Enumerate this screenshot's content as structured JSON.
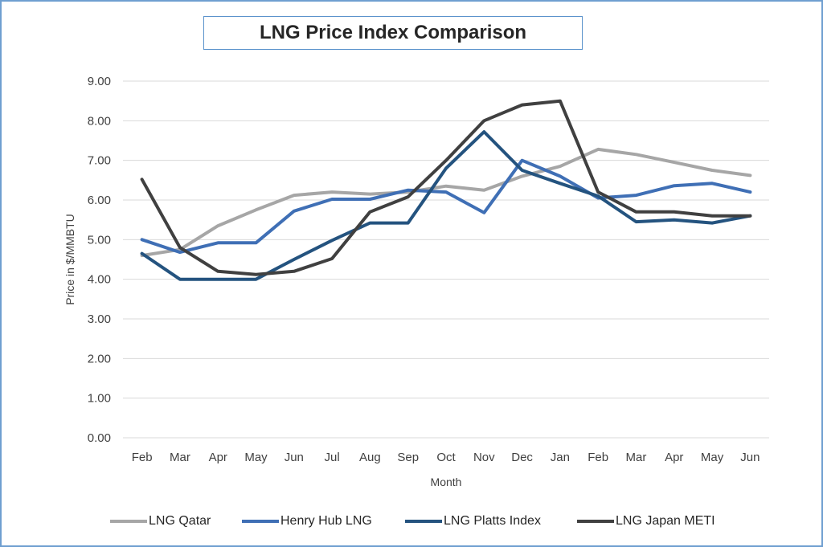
{
  "chart_data": {
    "type": "line",
    "title": "LNG Price Index Comparison",
    "xlabel": "Month",
    "ylabel": "Price in $/MMBTU",
    "ylim": [
      0,
      9
    ],
    "yticks": [
      "0.00",
      "1.00",
      "2.00",
      "3.00",
      "4.00",
      "5.00",
      "6.00",
      "7.00",
      "8.00",
      "9.00"
    ],
    "categories": [
      "Feb",
      "Mar",
      "Apr",
      "May",
      "Jun",
      "Jul",
      "Aug",
      "Sep",
      "Oct",
      "Nov",
      "Dec",
      "Jan",
      "Feb",
      "Mar",
      "Apr",
      "May",
      "Jun"
    ],
    "grid": true,
    "legend_position": "bottom",
    "series": [
      {
        "name": "LNG Qatar",
        "color": "#a6a6a6",
        "values": [
          4.6,
          4.75,
          5.35,
          5.75,
          6.12,
          6.2,
          6.15,
          6.2,
          6.35,
          6.25,
          6.6,
          6.85,
          7.28,
          7.15,
          6.95,
          6.75,
          6.62
        ]
      },
      {
        "name": "Henry Hub LNG",
        "color": "#3f6fb5",
        "values": [
          5.0,
          4.68,
          4.92,
          4.92,
          5.72,
          6.02,
          6.02,
          6.25,
          6.2,
          5.68,
          7.0,
          6.6,
          6.05,
          6.12,
          6.36,
          6.42,
          6.2
        ]
      },
      {
        "name": "LNG Platts Index",
        "color": "#24537f",
        "values": [
          4.65,
          4.0,
          4.0,
          4.0,
          4.5,
          4.98,
          5.42,
          5.42,
          6.8,
          7.72,
          6.75,
          6.42,
          6.1,
          5.45,
          5.5,
          5.42,
          5.6
        ]
      },
      {
        "name": "LNG Japan METI",
        "color": "#404040",
        "values": [
          6.52,
          4.8,
          4.2,
          4.12,
          4.2,
          4.52,
          5.7,
          6.08,
          7.0,
          8.0,
          8.4,
          8.5,
          6.2,
          5.7,
          5.7,
          5.6,
          5.6
        ]
      }
    ]
  }
}
